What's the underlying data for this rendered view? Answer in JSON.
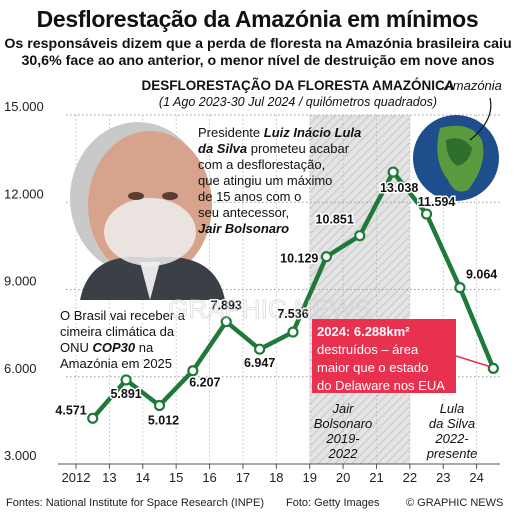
{
  "headline": "Desflorestação da Amazónia em mínimos",
  "subheadline": "Os responsáveis dizem que a perda de floresta na Amazónia brasileira caiu 30,6% face ao ano anterior, o menor nível de destruição em nove anos",
  "chart_data": {
    "type": "line",
    "title": "DESFLORESTAÇÃO DA FLORESTA AMAZÓNICA",
    "subtitle": "(1 Ago 2023-30 Jul 2024 / quilómetros quadrados)",
    "xlabel": "",
    "ylabel": "",
    "ylim": [
      3000,
      15000
    ],
    "y_ticks": [
      "3.000",
      "6.000",
      "9.000",
      "12.000",
      "15.000"
    ],
    "y_tick_values": [
      3000,
      6000,
      9000,
      12000,
      15000
    ],
    "x_ticks": [
      "2012",
      "13",
      "14",
      "15",
      "16",
      "17",
      "18",
      "19",
      "20",
      "21",
      "22",
      "23",
      "24"
    ],
    "x_tick_values": [
      2012,
      2013,
      2014,
      2015,
      2016,
      2017,
      2018,
      2019,
      2020,
      2021,
      2022,
      2023,
      2024
    ],
    "xlim": [
      2011.7,
      2024.7
    ],
    "grid": true,
    "series": [
      {
        "color": "#1f7a3a",
        "x": [
          2012.5,
          2013.5,
          2014.5,
          2015.5,
          2016.5,
          2017.5,
          2018.5,
          2019.5,
          2020.5,
          2021.5,
          2022.5,
          2023.5,
          2024.5
        ],
        "values": [
          4571,
          5891,
          5012,
          6207,
          7893,
          6947,
          7536,
          10129,
          10851,
          13038,
          11594,
          9064,
          6288
        ],
        "labels": [
          "4.571",
          "5.891",
          "5.012",
          "6.207",
          "7.893",
          "6.947",
          "7.536",
          "10.129",
          "10.851",
          "13.038",
          "11.594",
          "9.064",
          ""
        ]
      }
    ],
    "shaded_period": {
      "from": 2019,
      "to": 2022
    }
  },
  "annotations": {
    "president_lines": [
      {
        "pre": "Presidente ",
        "bold": "Luiz Inácio Lula"
      },
      {
        "pre": "",
        "bold": "da Silva",
        "post": " prometeu acabar"
      },
      {
        "pre": "com a desflorestação,"
      },
      {
        "pre": "que atingiu um máximo"
      },
      {
        "pre": "de 15 anos com o"
      },
      {
        "pre": "seu antecessor,"
      },
      {
        "pre": "",
        "bold": "Jair Bolsonaro"
      }
    ],
    "cop_lines": [
      {
        "pre": "O Brasil vai receber a"
      },
      {
        "pre": "cimeira climática da"
      },
      {
        "pre": "ONU ",
        "bold": "COP30",
        "post": " na"
      },
      {
        "pre": "Amazónia em 2025"
      }
    ],
    "highlight_lines": [
      {
        "pre": "2024: 6.288km²",
        "bold_all": true
      },
      {
        "pre": "destruídos – área"
      },
      {
        "pre": "maior que o estado"
      },
      {
        "pre": "do Delaware nos EUA"
      }
    ],
    "highlight_color": "#e8304f",
    "bolsonaro_lines": [
      "Jair",
      "Bolsonaro",
      "2019-",
      "2022"
    ],
    "lula_lines": [
      "Lula",
      "da Silva",
      "2022-",
      "presente"
    ],
    "map_label": "Amazónia",
    "watermark": "GRAPHIC NEWS"
  },
  "footer": {
    "sources": "Fontes: National Institute for Space Research (INPE)",
    "photo": "Foto: Getty Images",
    "copyright": "© GRAPHIC NEWS"
  }
}
